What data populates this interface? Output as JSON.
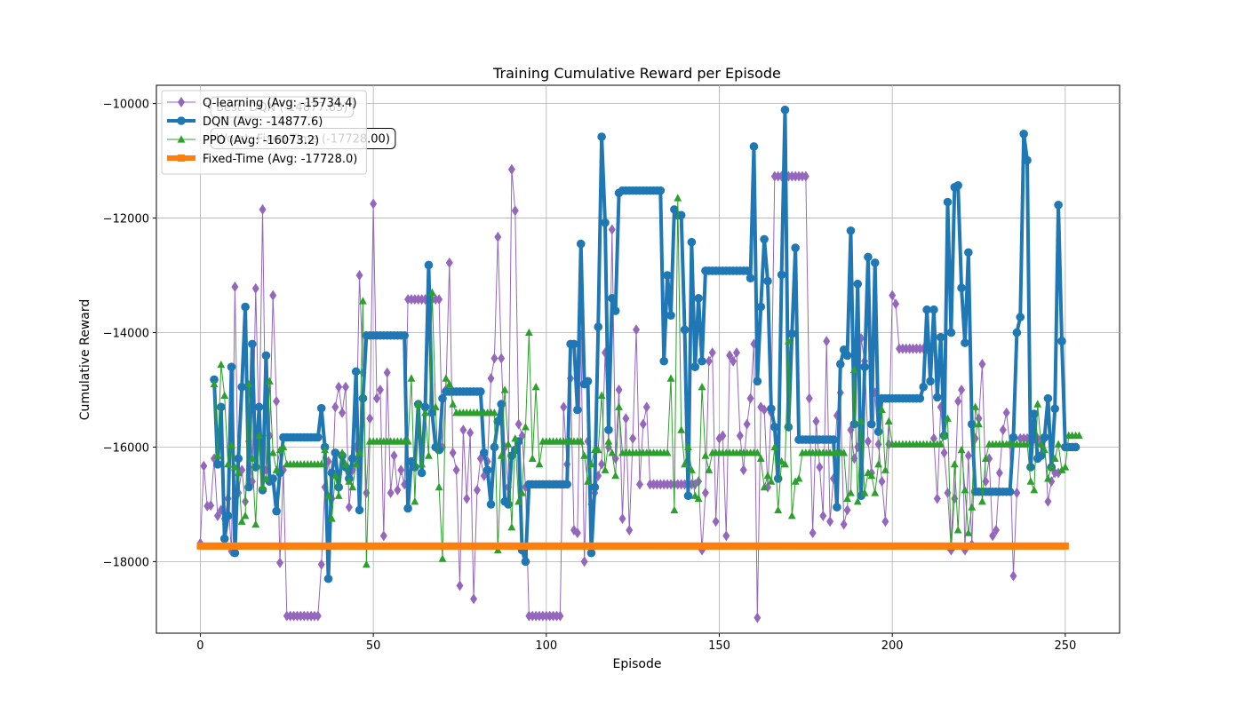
{
  "chart_data": {
    "type": "line",
    "title": "Training Cumulative Reward per Episode",
    "xlabel": "Episode",
    "ylabel": "Cumulative Reward",
    "xlim": [
      -12.7,
      265.7
    ],
    "ylim": [
      -19250,
      -9680
    ],
    "xticks": [
      0,
      50,
      100,
      150,
      200,
      250
    ],
    "yticks": [
      -18000,
      -16000,
      -14000,
      -12000,
      -10000
    ],
    "xtick_labels": [
      "0",
      "50",
      "100",
      "150",
      "200",
      "250"
    ],
    "ytick_labels": [
      "−18000",
      "−16000",
      "−14000",
      "−12000",
      "−10000"
    ],
    "grid": true,
    "legend_position": "top-left",
    "annotations": [
      {
        "text": "Best: DQN (-14877.63)",
        "x": 3,
        "y": -10130
      },
      {
        "text": "Worst: Fixed-Time (-17728.00)",
        "x": 3,
        "y": -10680
      }
    ],
    "series": [
      {
        "name": "Q-learning (Avg: -15734.4)",
        "color": "#9467bd",
        "marker": "diamond",
        "linewidth": 1,
        "values": [
          -17680,
          -16330,
          -17030,
          -17020,
          -16200,
          -17200,
          -17100,
          -17250,
          -16900,
          -17820,
          -13200,
          -16800,
          -16400,
          -16950,
          -15900,
          -16600,
          -13230,
          -15800,
          -11850,
          -16400,
          -15800,
          -13350,
          -15200,
          -18020,
          -16400,
          -18950,
          -18950,
          -18950,
          -18950,
          -18950,
          -18950,
          -18950,
          -18950,
          -18950,
          -18950,
          -18050,
          -16700,
          -16250,
          -16900,
          -15300,
          -14950,
          -15400,
          -14950,
          -17050,
          -16400,
          -16000,
          -13000,
          -14700,
          -16800,
          -15500,
          -11750,
          -15150,
          -15000,
          -17550,
          -14700,
          -16800,
          -16150,
          -16750,
          -16400,
          -16650,
          -13420,
          -13420,
          -13420,
          -13420,
          -13420,
          -13420,
          -13420,
          -13420,
          -13420,
          -13420,
          -16000,
          -15000,
          -12780,
          -16100,
          -16400,
          -18420,
          -15700,
          -16900,
          -15750,
          -18650,
          -16750,
          -16200,
          -16500,
          -16250,
          -14800,
          -14450,
          -12330,
          -14450,
          -16000,
          -16700,
          -11150,
          -11870,
          -15600,
          -15800,
          -16700,
          -18950,
          -18950,
          -18950,
          -18950,
          -18950,
          -18950,
          -18950,
          -18950,
          -18950,
          -18950,
          -15300,
          -16300,
          -14800,
          -17450,
          -17500,
          -14050,
          -18000,
          -15900,
          -17000,
          -16800,
          -16500,
          -16300,
          -14350,
          -16000,
          -12200,
          -16200,
          -15000,
          -17250,
          -15500,
          -17450,
          -15850,
          -13950,
          -16650,
          -15600,
          -15300,
          -16650,
          -16650,
          -16650,
          -16650,
          -16650,
          -16650,
          -16650,
          -16650,
          -16650,
          -16650,
          -16650,
          -16650,
          -16650,
          -16650,
          -16600,
          -17800,
          -16800,
          -14500,
          -14350,
          -17300,
          -15850,
          -15800,
          -17550,
          -14400,
          -14500,
          -14350,
          -15800,
          -16400,
          -15600,
          -15150,
          -14200,
          -18980,
          -15300,
          -15350,
          -16700,
          -15400,
          -11270,
          -11270,
          -11270,
          -11270,
          -11270,
          -11270,
          -11270,
          -11270,
          -11270,
          -11270,
          -15150,
          -17500,
          -15550,
          -16350,
          -17200,
          -14150,
          -17300,
          -16550,
          -15450,
          -15050,
          -17350,
          -17100,
          -15700,
          -16200,
          -16000,
          -14100,
          -14500,
          -15900,
          -16450,
          -15050,
          -15950,
          -16600,
          -17300,
          -15950,
          -13350,
          -13500,
          -14280,
          -14280,
          -14280,
          -14280,
          -14280,
          -14280,
          -14280,
          -14280,
          -14280,
          -14280,
          -15850,
          -16900,
          -15300,
          -16100,
          -16800,
          -17800,
          -16900,
          -15200,
          -15000,
          -17800,
          -16150,
          -17700,
          -15850,
          -15500,
          -14550,
          -16600,
          -16200,
          -17550,
          -17450,
          -16450,
          -15700,
          -15400,
          -15950,
          -18250,
          -16800,
          -15850,
          -15850,
          -15850,
          -15850,
          -15850,
          -15850,
          -15950,
          -15850,
          -16950,
          -16600,
          -16450,
          -16450
        ]
      },
      {
        "name": "DQN (Avg: -14877.6)",
        "color": "#1f77b4",
        "marker": "circle",
        "linewidth": 4,
        "values": [
          null,
          null,
          null,
          null,
          -14820,
          -16300,
          -15300,
          -17600,
          -17200,
          -14600,
          -17850,
          -16200,
          -14950,
          -13550,
          -16700,
          -14200,
          -16350,
          -15300,
          -16750,
          -14400,
          -16600,
          -16550,
          -17120,
          -16450,
          -15830,
          -15830,
          -15830,
          -15830,
          -15830,
          -15830,
          -15830,
          -15830,
          -15830,
          -15830,
          -15830,
          -15320,
          -16000,
          -18300,
          -16450,
          -16100,
          -16700,
          -16150,
          -16350,
          -16550,
          -16200,
          -14680,
          -17100,
          -15150,
          -14050,
          -14050,
          -14050,
          -14050,
          -14050,
          -14050,
          -14050,
          -14050,
          -14050,
          -14050,
          -14050,
          -14050,
          -17070,
          -16250,
          -16350,
          -15250,
          -16450,
          -15300,
          -12820,
          -15400,
          -16000,
          -16050,
          -15150,
          -15030,
          -15030,
          -15030,
          -15030,
          -15030,
          -15030,
          -15030,
          -15030,
          -15030,
          -15030,
          -15030,
          -16100,
          -16400,
          -17000,
          -16000,
          -15550,
          -15250,
          -16950,
          -17000,
          -16150,
          -16050,
          -15900,
          -17800,
          -18000,
          -16650,
          -16650,
          -16650,
          -16650,
          -16650,
          -16650,
          -16650,
          -16650,
          -16650,
          -16650,
          -16650,
          -16650,
          -14200,
          -14200,
          -15350,
          -12450,
          -14900,
          -14850,
          -17850,
          -16700,
          -13900,
          -10580,
          -12080,
          -15700,
          -13400,
          -13620,
          -11560,
          -11520,
          -11520,
          -11520,
          -11520,
          -11520,
          -11520,
          -11520,
          -11520,
          -11520,
          -11520,
          -11520,
          -11520,
          -14500,
          -13000,
          -13700,
          -11850,
          -11950,
          -11950,
          -13950,
          -16850,
          -12420,
          -14600,
          -13400,
          -14500,
          -12920,
          -12920,
          -12920,
          -12920,
          -12920,
          -12920,
          -12920,
          -12920,
          -12920,
          -12920,
          -12920,
          -12920,
          -12920,
          -13050,
          -10750,
          -14850,
          -13550,
          -12370,
          -13100,
          -15330,
          -15650,
          -16550,
          -12990,
          -10110,
          -15650,
          -14020,
          -12520,
          -15870,
          -15870,
          -15870,
          -15870,
          -15870,
          -15870,
          -15870,
          -15870,
          -15870,
          -15870,
          -15870,
          -17050,
          -14550,
          -14300,
          -14400,
          -12220,
          -15600,
          -13150,
          -16850,
          -14600,
          -12680,
          -15600,
          -12780,
          -15730,
          -15150,
          -15150,
          -15150,
          -15150,
          -15150,
          -15150,
          -15150,
          -15150,
          -15150,
          -15150,
          -15150,
          -15150,
          -14950,
          -13600,
          -14850,
          -13600,
          -15130,
          -14080,
          -15800,
          -11720,
          -14000,
          -11460,
          -11430,
          -13220,
          -14180,
          -12600,
          -15600,
          -16780,
          -16780,
          -16780,
          -16780,
          -16780,
          -16780,
          -16780,
          -16780,
          -16780,
          -16780,
          -16780,
          -15830,
          -14000,
          -13730,
          -10530,
          -10990,
          -16350,
          -15420,
          -16200,
          -16150,
          -15830,
          -15150,
          -16350,
          -15330,
          -11770,
          -14150,
          -16000,
          -16000,
          -16000,
          -16000
        ]
      },
      {
        "name": "PPO (Avg: -16073.2)",
        "color": "#2ca02c",
        "marker": "triangle",
        "linewidth": 1,
        "values": [
          null,
          null,
          null,
          null,
          -14900,
          -16150,
          -14560,
          -15100,
          -16300,
          -15970,
          -16350,
          -16450,
          -17300,
          -17200,
          -14900,
          -16200,
          -17350,
          -15800,
          -16700,
          -16550,
          -14850,
          -16100,
          -16400,
          -16050,
          -16000,
          -16300,
          -16300,
          -16300,
          -16300,
          -16300,
          -16300,
          -16300,
          -16300,
          -16300,
          -16300,
          -16300,
          -16050,
          -16850,
          -17250,
          -16500,
          -16850,
          -16100,
          -16300,
          -16600,
          -16700,
          -16300,
          -16100,
          -13450,
          -18050,
          -15900,
          -15900,
          -15900,
          -15900,
          -15900,
          -15900,
          -15900,
          -15900,
          -15900,
          -15900,
          -15900,
          -15900,
          -14800,
          -16950,
          -15250,
          -16300,
          -15400,
          -16150,
          -13300,
          -15300,
          -16700,
          -17950,
          -14800,
          -14900,
          -15250,
          -15400,
          -15400,
          -15400,
          -15400,
          -15400,
          -15400,
          -15400,
          -15400,
          -15400,
          -15400,
          -15400,
          -15400,
          -17800,
          -16150,
          -15000,
          -15950,
          -17400,
          -15850,
          -16950,
          -16800,
          -15650,
          -14000,
          -16200,
          -14950,
          -16300,
          -15900,
          -15900,
          -15900,
          -15900,
          -15900,
          -15900,
          -15900,
          -15900,
          -15900,
          -15900,
          -15900,
          -15900,
          -16150,
          -16600,
          -16300,
          -16050,
          -16050,
          -15100,
          -16400,
          -15900,
          -16100,
          -16500,
          -15300,
          -16100,
          -16100,
          -16100,
          -16100,
          -16100,
          -16100,
          -16100,
          -16100,
          -16100,
          -16100,
          -16100,
          -16100,
          -16100,
          -16100,
          -14800,
          -17100,
          -11650,
          -15700,
          -16300,
          -16000,
          -16400,
          -16850,
          -16900,
          -14950,
          -16150,
          -16400,
          -16100,
          -16100,
          -16100,
          -16100,
          -16100,
          -16100,
          -16100,
          -16100,
          -16100,
          -16100,
          -16100,
          -16100,
          -16100,
          -16100,
          -16200,
          -16700,
          -16500,
          -16600,
          -16000,
          -17100,
          -16250,
          -16300,
          -14150,
          -17200,
          -16600,
          -16550,
          -16100,
          -16100,
          -16100,
          -16100,
          -16100,
          -16100,
          -16100,
          -16100,
          -16100,
          -16100,
          -16100,
          -16100,
          -16100,
          -16900,
          -16800,
          -14650,
          -16950,
          -15550,
          -16800,
          -16450,
          -16500,
          -16800,
          -16300,
          -15350,
          -16400,
          -15550,
          -15950,
          -15950,
          -15950,
          -15950,
          -15950,
          -15950,
          -15950,
          -15950,
          -15950,
          -15950,
          -15950,
          -15950,
          -15950,
          -15950,
          -15950,
          -15800,
          -15500,
          -17750,
          -16300,
          -17450,
          -16050,
          -16750,
          -17500,
          -17050,
          -15300,
          -15600,
          -16950,
          -16200,
          -15950,
          -15950,
          -15950,
          -15950,
          -15950,
          -15950,
          -15950,
          -15950,
          -15950,
          -15950,
          -15950,
          -15950,
          -16600,
          -16750,
          -15250,
          -15950,
          -16050,
          -16550,
          -16350,
          -16200,
          -15950,
          -16400,
          -16350,
          -15800,
          -15800,
          -15800,
          -15800
        ]
      },
      {
        "name": "Fixed-Time (Avg: -17728.0)",
        "color": "#ff7f0e",
        "marker": "square",
        "linewidth": 6,
        "flat": {
          "value": -17728,
          "count": 251
        }
      }
    ]
  }
}
